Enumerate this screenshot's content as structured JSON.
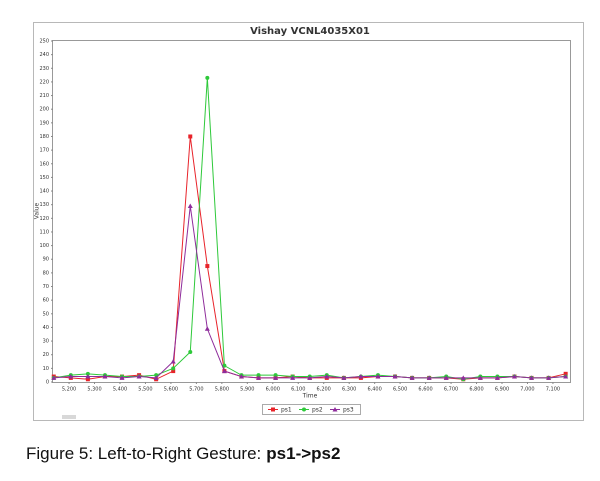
{
  "chart_data": {
    "type": "line",
    "title": "Vishay VCNL4035X01",
    "xlabel": "Time",
    "ylabel": "Value",
    "x": [
      5140,
      5207,
      5274,
      5341,
      5408,
      5475,
      5542,
      5609,
      5676,
      5743,
      5810,
      5877,
      5944,
      6011,
      6078,
      6145,
      6212,
      6279,
      6346,
      6413,
      6480,
      6547,
      6614,
      6681,
      6748,
      6815,
      6882,
      6949,
      7016,
      7083,
      7150
    ],
    "series": [
      {
        "name": "ps1",
        "color": "#e8232a",
        "marker": "square",
        "values": [
          4,
          3,
          2,
          4,
          4,
          5,
          2,
          8,
          180,
          85,
          8,
          4,
          3,
          3,
          4,
          3,
          3,
          3,
          3,
          4,
          4,
          3,
          3,
          3,
          2,
          3,
          3,
          4,
          3,
          3,
          6
        ]
      },
      {
        "name": "ps2",
        "color": "#2ec93a",
        "marker": "circle",
        "values": [
          3,
          5,
          6,
          5,
          4,
          4,
          5,
          10,
          22,
          223,
          12,
          5,
          5,
          5,
          4,
          4,
          5,
          3,
          4,
          5,
          4,
          3,
          3,
          4,
          2,
          4,
          4,
          4,
          3,
          3,
          4
        ]
      },
      {
        "name": "ps3",
        "color": "#8e2c9b",
        "marker": "triangle",
        "values": [
          3,
          4,
          4,
          4,
          3,
          4,
          3,
          15,
          129,
          39,
          8,
          4,
          3,
          3,
          3,
          3,
          4,
          3,
          4,
          4,
          4,
          3,
          3,
          3,
          3,
          3,
          3,
          4,
          3,
          3,
          4
        ]
      }
    ],
    "xlim": [
      5137,
      7167
    ],
    "ylim": [
      0,
      250
    ],
    "xticks": [
      {
        "value": 5200,
        "label": "5,200"
      },
      {
        "value": 5300,
        "label": "5,300"
      },
      {
        "value": 5400,
        "label": "5,400"
      },
      {
        "value": 5500,
        "label": "5,500"
      },
      {
        "value": 5600,
        "label": "5,600"
      },
      {
        "value": 5700,
        "label": "5,700"
      },
      {
        "value": 5800,
        "label": "5,800"
      },
      {
        "value": 5900,
        "label": "5,900"
      },
      {
        "value": 6000,
        "label": "6,000"
      },
      {
        "value": 6100,
        "label": "6,100"
      },
      {
        "value": 6200,
        "label": "6,200"
      },
      {
        "value": 6300,
        "label": "6,300"
      },
      {
        "value": 6400,
        "label": "6,400"
      },
      {
        "value": 6500,
        "label": "6,500"
      },
      {
        "value": 6600,
        "label": "6,600"
      },
      {
        "value": 6700,
        "label": "6,700"
      },
      {
        "value": 6800,
        "label": "6,800"
      },
      {
        "value": 6900,
        "label": "6,900"
      },
      {
        "value": 7000,
        "label": "7,000"
      },
      {
        "value": 7100,
        "label": "7,100"
      }
    ],
    "yticks": [
      0,
      10,
      20,
      30,
      40,
      50,
      60,
      70,
      80,
      90,
      100,
      110,
      120,
      130,
      140,
      150,
      160,
      170,
      180,
      190,
      200,
      210,
      220,
      230,
      240,
      250
    ],
    "grid": false,
    "legend": "bottom"
  },
  "caption": {
    "prefix": "Figure 5: Left-to-Right Gesture:",
    "emphasis": "ps1->ps2"
  }
}
